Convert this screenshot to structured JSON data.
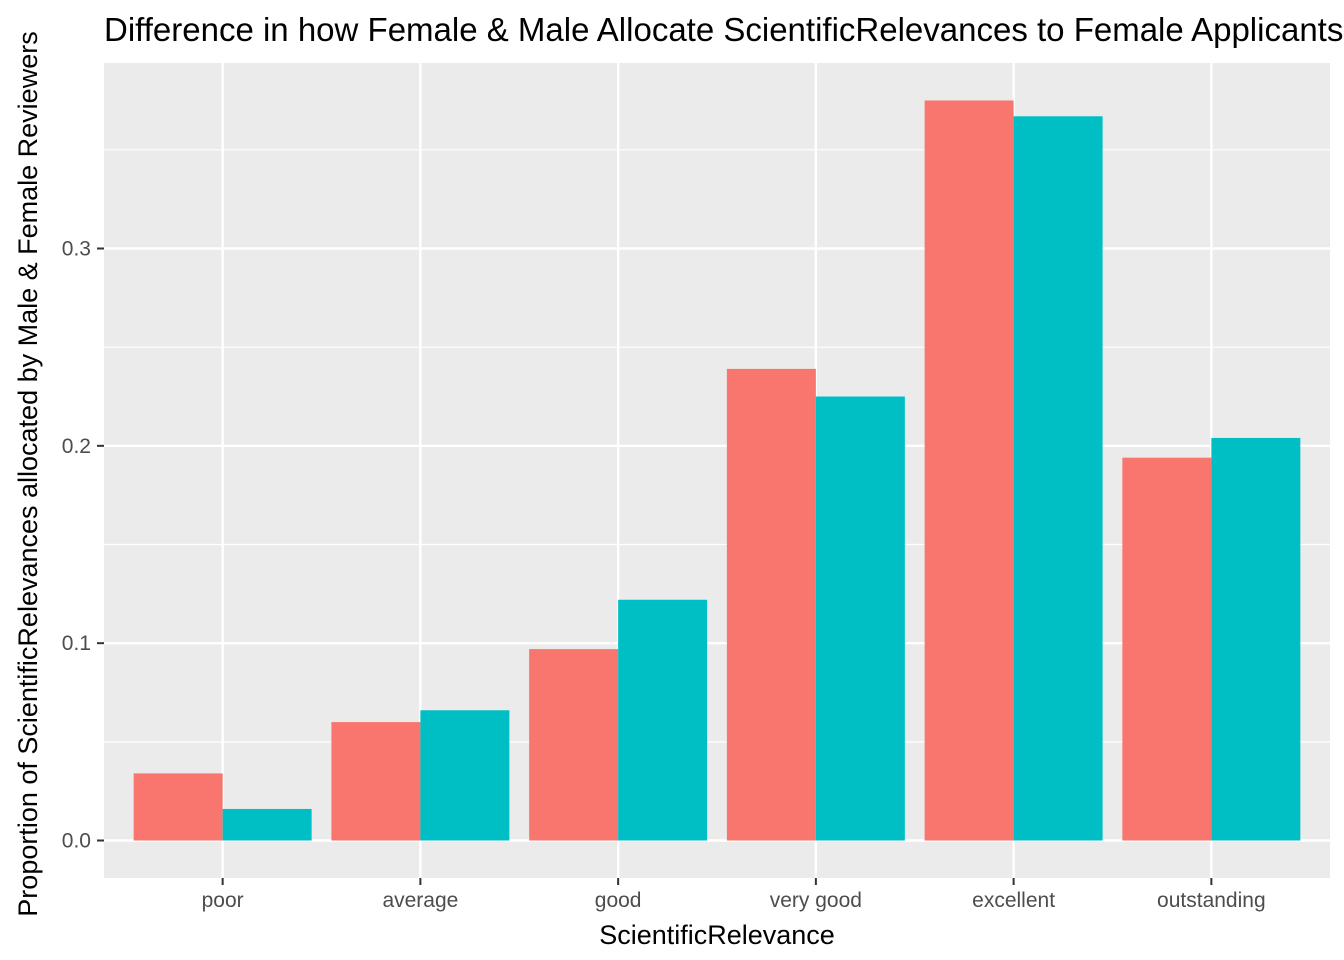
{
  "chart_data": {
    "type": "bar",
    "title": "Difference in how Female & Male Allocate ScientificRelevances to Female Applicants",
    "xlabel": "ScientificRelevance",
    "ylabel": "Proportion of ScientificRelevances allocated by Male & Female Reviewers",
    "categories": [
      "poor",
      "average",
      "good",
      "very good",
      "excellent",
      "outstanding"
    ],
    "series": [
      {
        "color": "#F8766D",
        "values": [
          0.034,
          0.06,
          0.097,
          0.239,
          0.375,
          0.194
        ]
      },
      {
        "color": "#00BFC4",
        "values": [
          0.016,
          0.066,
          0.122,
          0.225,
          0.367,
          0.204
        ]
      }
    ],
    "y_ticks": [
      0.0,
      0.1,
      0.2,
      0.3
    ],
    "y_tick_labels": [
      "0.0",
      "0.1",
      "0.2",
      "0.3"
    ],
    "ylim": [
      -0.019,
      0.394
    ],
    "grid": true,
    "legend": "none",
    "panel_color": "#EBEBEB"
  }
}
